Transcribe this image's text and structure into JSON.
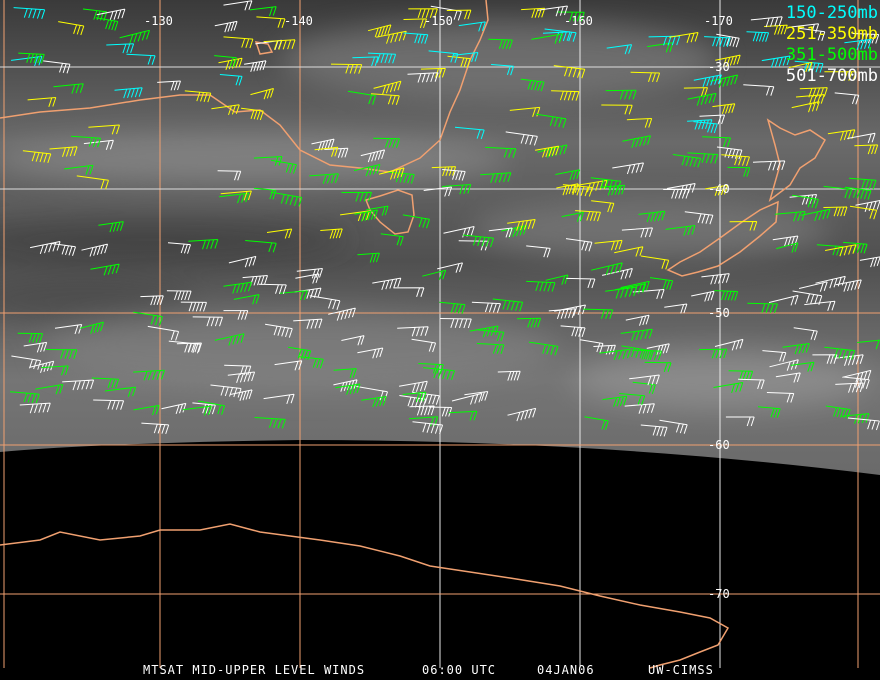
{
  "colors": {
    "grid": "#f0a070",
    "coast": "#f0a070",
    "layer_150_250": "#00ffff",
    "layer_251_350": "#ffff00",
    "layer_351_500": "#00ff00",
    "layer_501_700": "#ffffff",
    "space": "#000000"
  },
  "legend": [
    {
      "label": "150-250mb",
      "color": "#00ffff"
    },
    {
      "label": "251-350mb",
      "color": "#ffff00"
    },
    {
      "label": "351-500mb",
      "color": "#00ff00"
    },
    {
      "label": "501-700mb",
      "color": "#ffffff"
    }
  ],
  "longitude_labels": [
    "-130",
    "-140",
    "-150",
    "-160",
    "-170"
  ],
  "latitude_labels": [
    "-30",
    "-40",
    "-50",
    "-60",
    "-70"
  ],
  "caption": {
    "product": "MTSAT MID-UPPER LEVEL WINDS",
    "time": "06:00 UTC",
    "date": "04JAN06",
    "source": "UW-CIMSS"
  }
}
